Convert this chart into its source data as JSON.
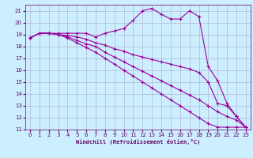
{
  "xlabel": "Windchill (Refroidissement éolien,°C)",
  "background_color": "#cceeff",
  "grid_color": "#aaaacc",
  "line_color": "#990099",
  "xlim": [
    -0.5,
    23.5
  ],
  "ylim": [
    11,
    21.5
  ],
  "xticks": [
    0,
    1,
    2,
    3,
    4,
    5,
    6,
    7,
    8,
    9,
    10,
    11,
    12,
    13,
    14,
    15,
    16,
    17,
    18,
    19,
    20,
    21,
    22,
    23
  ],
  "yticks": [
    11,
    12,
    13,
    14,
    15,
    16,
    17,
    18,
    19,
    20,
    21
  ],
  "series": [
    {
      "x": [
        0,
        1,
        2,
        3,
        4,
        5,
        6,
        7,
        8,
        9,
        10,
        11,
        12,
        13,
        14,
        15,
        16,
        17,
        18,
        19,
        20,
        21,
        22,
        23
      ],
      "y": [
        18.7,
        19.1,
        19.1,
        19.1,
        19.1,
        19.1,
        19.1,
        18.8,
        19.1,
        19.3,
        19.5,
        20.2,
        21.0,
        21.2,
        20.7,
        20.3,
        20.3,
        21.0,
        20.5,
        16.3,
        15.1,
        13.2,
        12.1,
        11.2
      ]
    },
    {
      "x": [
        0,
        1,
        2,
        3,
        4,
        5,
        6,
        7,
        8,
        9,
        10,
        11,
        12,
        13,
        14,
        15,
        16,
        17,
        18,
        19,
        20,
        21,
        22,
        23
      ],
      "y": [
        18.7,
        19.1,
        19.1,
        19.0,
        18.9,
        18.8,
        18.6,
        18.3,
        18.1,
        17.8,
        17.6,
        17.3,
        17.1,
        16.9,
        16.7,
        16.5,
        16.3,
        16.1,
        15.8,
        15.0,
        13.2,
        13.0,
        12.1,
        11.2
      ]
    },
    {
      "x": [
        0,
        1,
        2,
        3,
        4,
        5,
        6,
        7,
        8,
        9,
        10,
        11,
        12,
        13,
        14,
        15,
        16,
        17,
        18,
        19,
        20,
        21,
        22,
        23
      ],
      "y": [
        18.7,
        19.1,
        19.1,
        19.0,
        18.8,
        18.5,
        18.2,
        18.0,
        17.5,
        17.1,
        16.7,
        16.3,
        15.9,
        15.5,
        15.1,
        14.7,
        14.3,
        13.9,
        13.5,
        13.0,
        12.5,
        12.1,
        11.8,
        11.2
      ]
    },
    {
      "x": [
        0,
        1,
        2,
        3,
        4,
        5,
        6,
        7,
        8,
        9,
        10,
        11,
        12,
        13,
        14,
        15,
        16,
        17,
        18,
        19,
        20,
        21,
        22,
        23
      ],
      "y": [
        18.7,
        19.1,
        19.1,
        19.0,
        18.7,
        18.3,
        17.9,
        17.5,
        17.0,
        16.5,
        16.0,
        15.5,
        15.0,
        14.5,
        14.0,
        13.5,
        13.0,
        12.5,
        12.0,
        11.5,
        11.2,
        11.2,
        11.2,
        11.2
      ]
    }
  ]
}
